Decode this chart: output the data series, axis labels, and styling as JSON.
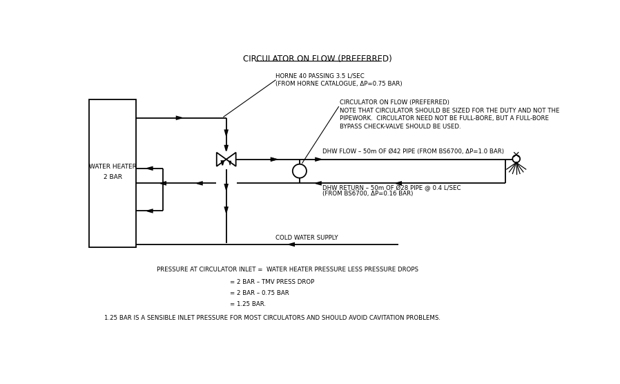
{
  "title": "CIRCULATOR ON FLOW (PREFERRED)",
  "bg_color": "#ffffff",
  "line_color": "#000000",
  "font_family": "DejaVu Sans",
  "title_fontsize": 8.5,
  "label_fontsize": 6.2,
  "small_fontsize": 5.8,
  "water_heater_label1": "WATER HEATER",
  "water_heater_label2": "2 BAR",
  "tmv_label": "HORNE 40 PASSING 3.5 L/SEC\n(FROM HORNE CATALOGUE, ΔP=0.75 BAR)",
  "circulator_label": "CIRCULATOR ON FLOW (PREFERRED)\nNOTE THAT CIRCULATOR SHOULD BE SIZED FOR THE DUTY AND NOT THE\nPIPEWORK.  CIRCULATOR NEED NOT BE FULL-BORE, BUT A FULL-BORE\nBYPASS CHECK-VALVE SHOULD BE USED.",
  "dhw_flow_label": "DHW FLOW – 50m OF Ø42 PIPE (FROM BS6700, ΔP=1.0 BAR)",
  "dhw_return_label": "DHW RETURN – 50m OF Ø28 PIPE @ 0.4 L/SEC",
  "dhw_return_label2": "(FROM BS6700, ΔP=0.16 BAR)",
  "cold_water_label": "COLD WATER SUPPLY",
  "pressure_line1": "PRESSURE AT CIRCULATOR INLET =  WATER HEATER PRESSURE LESS PRESSURE DROPS",
  "pressure_line2": "= 2 BAR – TMV PRESS DROP",
  "pressure_line3": "= 2 BAR – 0.75 BAR",
  "pressure_line4": "= 1.25 BAR.",
  "pressure_line5": "1.25 BAR IS A SENSIBLE INLET PRESSURE FOR MOST CIRCULATORS AND SHOULD AVOID CAVITATION PROBLEMS."
}
